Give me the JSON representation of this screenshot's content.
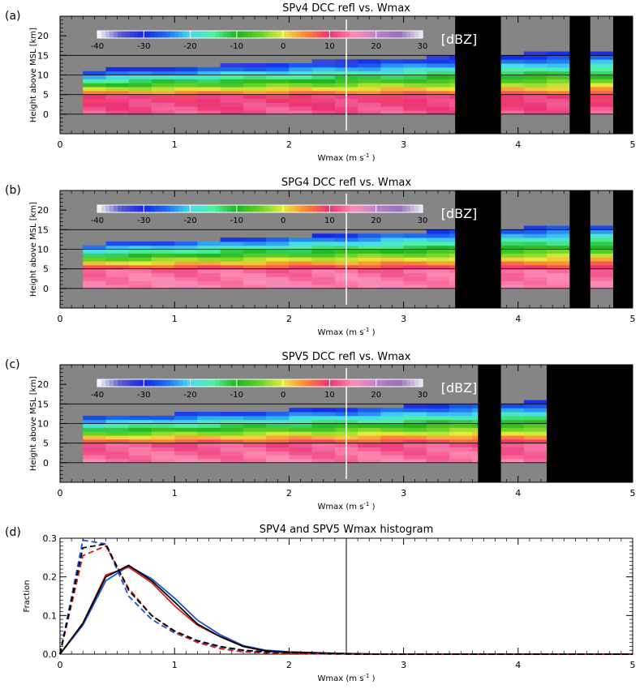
{
  "chart_data": [
    {
      "type": "heatmap",
      "panel_label": "(a)",
      "title": "SPv4 DCC refl vs. Wmax",
      "xlabel": "Wmax (m s",
      "xlabel_sup": "-1",
      "xlabel_tail": ")",
      "ylabel": "Height above MSL [km]",
      "xlim": [
        0,
        5
      ],
      "ylim": [
        -5,
        25
      ],
      "xticks": [
        "0",
        "1",
        "2",
        "3",
        "4",
        "5"
      ],
      "yticks": [
        "0",
        "5",
        "10",
        "15",
        "20"
      ],
      "reference_lines": {
        "vertical_x": 2.5,
        "horizontal_y": [
          0,
          5,
          10,
          15
        ]
      },
      "colorbar": {
        "ticks": [
          "-40",
          "-30",
          "-20",
          "-10",
          "0",
          "10",
          "20",
          "30"
        ],
        "range": [
          -40,
          30
        ],
        "unit": "[dBZ]"
      },
      "no_data_x_ranges": [
        [
          3.45,
          3.85
        ],
        [
          4.45,
          4.63
        ],
        [
          4.83,
          5.0
        ]
      ],
      "data_coverage_x_ranges": [
        [
          0.2,
          3.45
        ],
        [
          3.85,
          4.45
        ],
        [
          4.63,
          4.83
        ]
      ],
      "profile": {
        "base_top_km": [
          10.5,
          16.0
        ],
        "surface_dbz": 12
      }
    },
    {
      "type": "heatmap",
      "panel_label": "(b)",
      "title": "SPG4 DCC refl vs. Wmax",
      "xlabel": "Wmax (m s",
      "xlabel_sup": "-1",
      "xlabel_tail": ")",
      "ylabel": "Height above MSL [km]",
      "xlim": [
        0,
        5
      ],
      "ylim": [
        -5,
        25
      ],
      "xticks": [
        "0",
        "1",
        "2",
        "3",
        "4",
        "5"
      ],
      "yticks": [
        "0",
        "5",
        "10",
        "15",
        "20"
      ],
      "reference_lines": {
        "vertical_x": 2.5,
        "horizontal_y": [
          0,
          5,
          10,
          15
        ]
      },
      "colorbar": {
        "ticks": [
          "-40",
          "-30",
          "-20",
          "-10",
          "0",
          "10",
          "20",
          "30"
        ],
        "range": [
          -40,
          30
        ],
        "unit": "[dBZ]"
      },
      "no_data_x_ranges": [
        [
          3.45,
          3.85
        ],
        [
          4.45,
          4.63
        ],
        [
          4.83,
          5.0
        ]
      ],
      "data_coverage_x_ranges": [
        [
          0.2,
          3.45
        ],
        [
          3.85,
          4.45
        ],
        [
          4.63,
          4.83
        ]
      ],
      "profile": {
        "base_top_km": [
          10.5,
          16.0
        ],
        "surface_dbz": 15
      }
    },
    {
      "type": "heatmap",
      "panel_label": "(c)",
      "title": "SPV5 DCC refl vs. Wmax",
      "xlabel": "Wmax (m s",
      "xlabel_sup": "-1",
      "xlabel_tail": ")",
      "ylabel": "Height above MSL [km]",
      "xlim": [
        0,
        5
      ],
      "ylim": [
        -5,
        25
      ],
      "xticks": [
        "0",
        "1",
        "2",
        "3",
        "4",
        "5"
      ],
      "yticks": [
        "0",
        "5",
        "10",
        "15",
        "20"
      ],
      "reference_lines": {
        "vertical_x": 2.5,
        "horizontal_y": [
          0,
          5,
          10,
          15
        ]
      },
      "colorbar": {
        "ticks": [
          "-40",
          "-30",
          "-20",
          "-10",
          "0",
          "10",
          "20",
          "30"
        ],
        "range": [
          -40,
          30
        ],
        "unit": "[dBZ]"
      },
      "no_data_x_ranges": [
        [
          3.65,
          3.85
        ],
        [
          4.25,
          5.0
        ]
      ],
      "data_coverage_x_ranges": [
        [
          0.2,
          3.65
        ],
        [
          3.85,
          4.25
        ]
      ],
      "profile": {
        "base_top_km": [
          11.0,
          16.0
        ],
        "surface_dbz": 14
      }
    },
    {
      "type": "line",
      "panel_label": "(d)",
      "title": "SPV4 and SPV5 Wmax histogram",
      "xlabel": "Wmax (m s",
      "xlabel_sup": "-1",
      "xlabel_tail": ")",
      "ylabel": "Fraction",
      "xlim": [
        0,
        5
      ],
      "ylim": [
        0,
        0.3
      ],
      "xticks": [
        "0",
        "1",
        "2",
        "3",
        "4",
        "5"
      ],
      "yticks": [
        "0.0",
        "0.1",
        "0.2",
        "0.3"
      ],
      "reference_lines": {
        "vertical_x": 2.5
      },
      "x": [
        0.0,
        0.2,
        0.4,
        0.6,
        0.8,
        1.0,
        1.2,
        1.4,
        1.6,
        1.8,
        2.0,
        2.2,
        2.4,
        2.6,
        2.8,
        3.0,
        3.5,
        4.0,
        4.5,
        5.0
      ],
      "series": [
        {
          "color": "#1a4fd6",
          "dash": false,
          "values": [
            0.0,
            0.075,
            0.19,
            0.228,
            0.195,
            0.145,
            0.088,
            0.05,
            0.022,
            0.01,
            0.006,
            0.004,
            0.002,
            0.001,
            0.0,
            0.0,
            0.0,
            0.0,
            0.0,
            0.0
          ]
        },
        {
          "color": "#d61a1a",
          "dash": false,
          "values": [
            0.0,
            0.08,
            0.205,
            0.225,
            0.185,
            0.125,
            0.075,
            0.045,
            0.02,
            0.008,
            0.004,
            0.002,
            0.001,
            0.0,
            0.0,
            0.0,
            0.0,
            0.0,
            0.0,
            0.0
          ]
        },
        {
          "color": "#000000",
          "dash": false,
          "values": [
            0.0,
            0.08,
            0.2,
            0.23,
            0.19,
            0.135,
            0.078,
            0.045,
            0.02,
            0.008,
            0.005,
            0.004,
            0.002,
            0.001,
            0.0,
            0.0,
            0.0,
            0.0,
            0.0,
            0.0
          ]
        },
        {
          "color": "#1a4fd6",
          "dash": true,
          "values": [
            0.0,
            0.295,
            0.285,
            0.15,
            0.09,
            0.055,
            0.032,
            0.018,
            0.01,
            0.005,
            0.003,
            0.002,
            0.001,
            0.0,
            0.0,
            0.0,
            0.0,
            0.0,
            0.0,
            0.0
          ]
        },
        {
          "color": "#d61a1a",
          "dash": true,
          "values": [
            0.0,
            0.255,
            0.28,
            0.17,
            0.1,
            0.058,
            0.03,
            0.014,
            0.006,
            0.003,
            0.002,
            0.001,
            0.0,
            0.0,
            0.0,
            0.0,
            0.0,
            0.0,
            0.0,
            0.0
          ]
        },
        {
          "color": "#000000",
          "dash": true,
          "values": [
            0.0,
            0.275,
            0.285,
            0.165,
            0.1,
            0.06,
            0.035,
            0.02,
            0.01,
            0.006,
            0.004,
            0.003,
            0.001,
            0.0,
            0.0,
            0.0,
            0.0,
            0.0,
            0.0,
            0.0
          ]
        }
      ]
    }
  ]
}
